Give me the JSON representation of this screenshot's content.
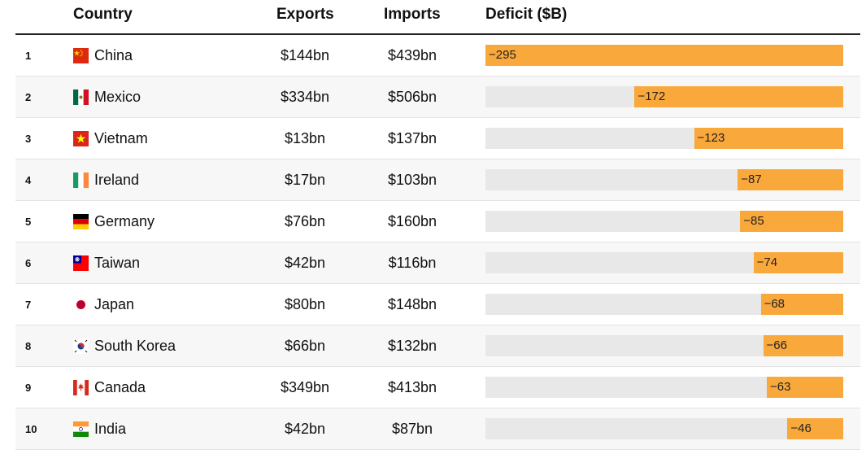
{
  "chart_data": {
    "type": "table",
    "title": "",
    "columns": [
      "Country",
      "Exports",
      "Imports",
      "Deficit ($B)"
    ],
    "xlim": [
      -295,
      0
    ],
    "rows": [
      {
        "rank": "1",
        "country": "China",
        "flag": "china-flag",
        "exports": "$144bn",
        "imports": "$439bn",
        "deficit": -295,
        "deficit_label": "−295"
      },
      {
        "rank": "2",
        "country": "Mexico",
        "flag": "mexico-flag",
        "exports": "$334bn",
        "imports": "$506bn",
        "deficit": -172,
        "deficit_label": "−172"
      },
      {
        "rank": "3",
        "country": "Vietnam",
        "flag": "vietnam-flag",
        "exports": "$13bn",
        "imports": "$137bn",
        "deficit": -123,
        "deficit_label": "−123"
      },
      {
        "rank": "4",
        "country": "Ireland",
        "flag": "ireland-flag",
        "exports": "$17bn",
        "imports": "$103bn",
        "deficit": -87,
        "deficit_label": "−87"
      },
      {
        "rank": "5",
        "country": "Germany",
        "flag": "germany-flag",
        "exports": "$76bn",
        "imports": "$160bn",
        "deficit": -85,
        "deficit_label": "−85"
      },
      {
        "rank": "6",
        "country": "Taiwan",
        "flag": "taiwan-flag",
        "exports": "$42bn",
        "imports": "$116bn",
        "deficit": -74,
        "deficit_label": "−74"
      },
      {
        "rank": "7",
        "country": "Japan",
        "flag": "japan-flag",
        "exports": "$80bn",
        "imports": "$148bn",
        "deficit": -68,
        "deficit_label": "−68"
      },
      {
        "rank": "8",
        "country": "South Korea",
        "flag": "south-korea-flag",
        "exports": "$66bn",
        "imports": "$132bn",
        "deficit": -66,
        "deficit_label": "−66"
      },
      {
        "rank": "9",
        "country": "Canada",
        "flag": "canada-flag",
        "exports": "$349bn",
        "imports": "$413bn",
        "deficit": -63,
        "deficit_label": "−63"
      },
      {
        "rank": "10",
        "country": "India",
        "flag": "india-flag",
        "exports": "$42bn",
        "imports": "$87bn",
        "deficit": -46,
        "deficit_label": "−46"
      }
    ],
    "colors": {
      "bar": "#f9a83b",
      "track": "#e8e8e8",
      "row_alt": "#f7f7f7"
    }
  }
}
